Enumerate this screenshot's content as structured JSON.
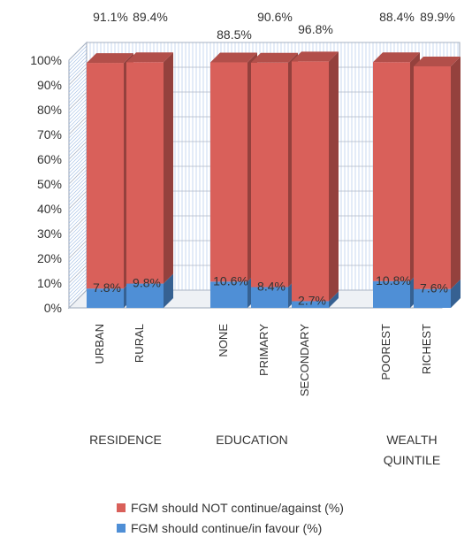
{
  "chart_data": {
    "type": "bar",
    "stacked": true,
    "three_d": true,
    "categories": [
      "URBAN",
      "RURAL",
      "NONE",
      "PRIMARY",
      "SECONDARY",
      "POOREST",
      "RICHEST"
    ],
    "groups": [
      {
        "label": "RESIDENCE",
        "categories": [
          "URBAN",
          "RURAL"
        ]
      },
      {
        "label": "EDUCATION",
        "categories": [
          "NONE",
          "PRIMARY",
          "SECONDARY"
        ]
      },
      {
        "label": "WEALTH QUINTILE",
        "categories": [
          "POOREST",
          "RICHEST"
        ]
      }
    ],
    "series": [
      {
        "name": "FGM should continue/in favour (%)",
        "color": "#4f8fd6",
        "values": [
          7.8,
          9.8,
          10.6,
          8.4,
          2.7,
          10.8,
          7.6
        ],
        "labels": [
          "7.8%",
          "9.8%",
          "10.6%",
          "8.4%",
          "2.7%",
          "10.8%",
          "7.6%"
        ]
      },
      {
        "name": "FGM should NOT continue/against (%)",
        "color": "#d9605a",
        "values": [
          91.1,
          89.4,
          88.5,
          90.6,
          96.8,
          88.4,
          89.9
        ],
        "labels": [
          "91.1%",
          "89.4%",
          "88.5%",
          "90.6%",
          "96.8%",
          "88.4%",
          "89.9%"
        ]
      }
    ],
    "yticks": [
      "0%",
      "10%",
      "20%",
      "30%",
      "40%",
      "50%",
      "60%",
      "70%",
      "80%",
      "90%",
      "100%"
    ],
    "ylim": [
      0,
      100
    ],
    "grid": "horizontal",
    "legend": "bottom"
  }
}
